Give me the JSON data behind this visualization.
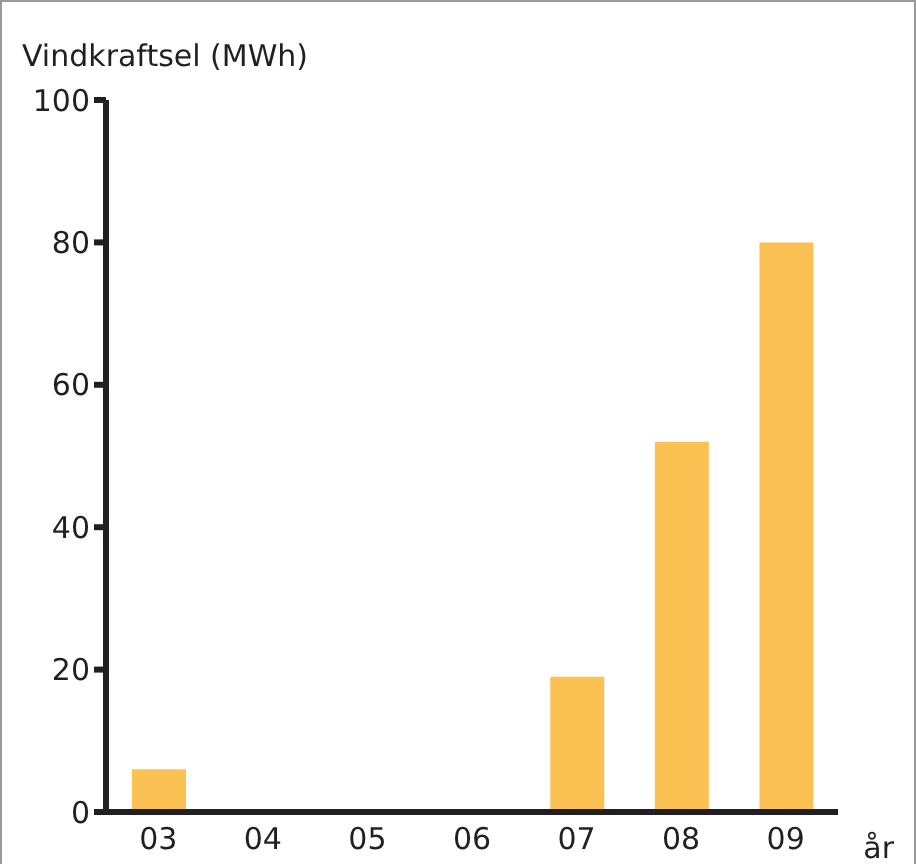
{
  "chart_data": {
    "type": "bar",
    "ylabel": "Vindkraftsel (MWh)",
    "xlabel": "år",
    "categories": [
      "03",
      "04",
      "05",
      "06",
      "07",
      "08",
      "09"
    ],
    "values": [
      6,
      0,
      0,
      0,
      19,
      52,
      80
    ],
    "color": "#fbc253",
    "ylim": [
      0,
      100
    ],
    "yticks": [
      0,
      20,
      40,
      60,
      80,
      100
    ],
    "grid": false
  }
}
